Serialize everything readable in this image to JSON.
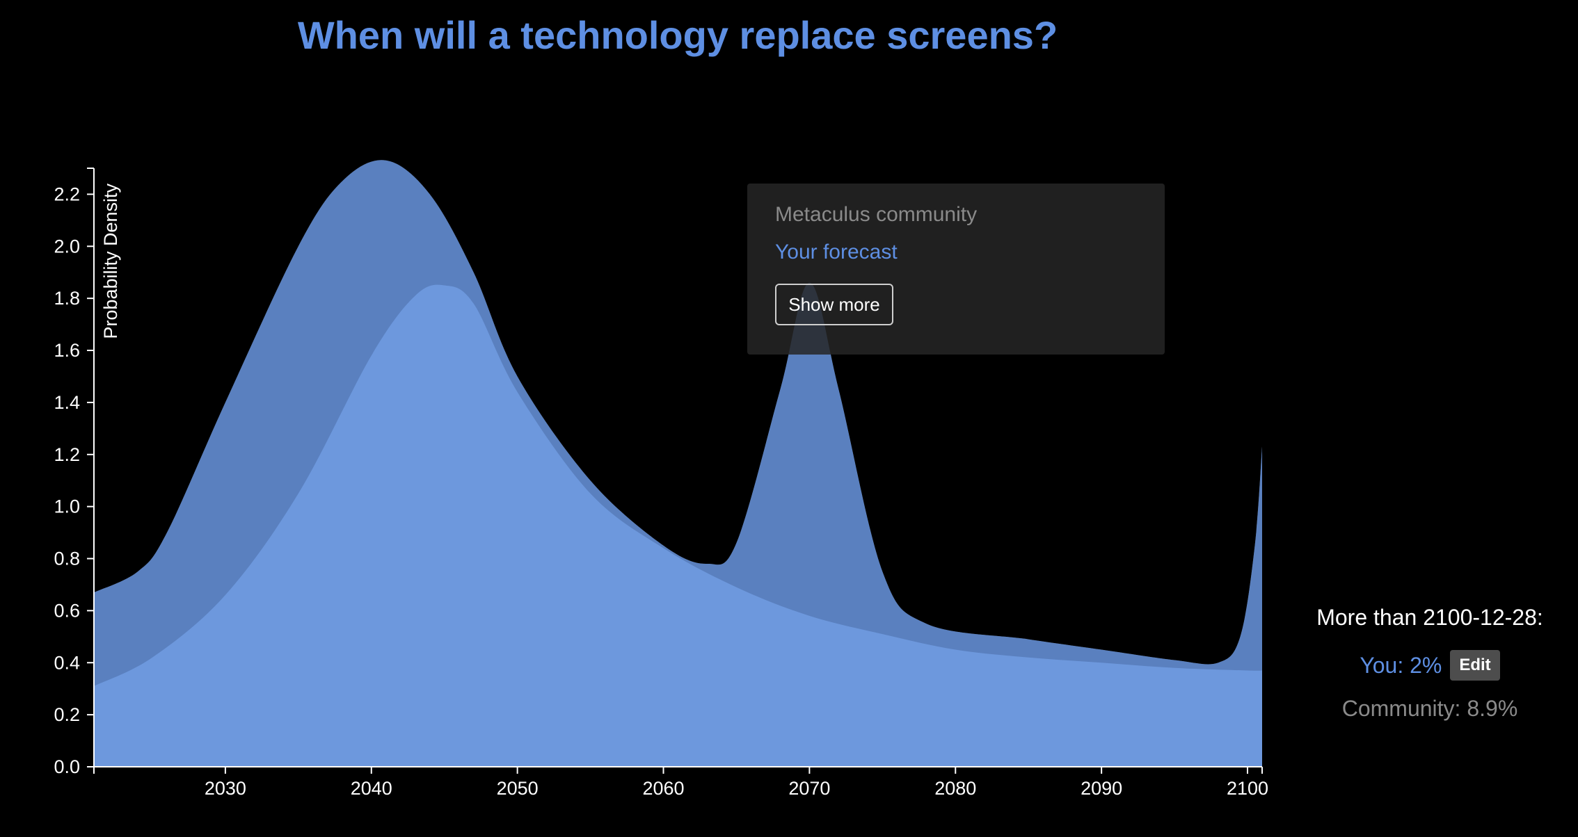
{
  "page": {
    "title": "When will a technology replace screens?"
  },
  "legend": {
    "community_label": "Metaculus community",
    "your_label": "Your forecast",
    "show_more_label": "Show more"
  },
  "side_panel": {
    "heading": "More than 2100-12-28:",
    "you_label": "You: 2%",
    "edit_label": "Edit",
    "community_label": "Community: 8.9%"
  },
  "colors": {
    "background": "#000000",
    "accent": "#5e8fe3",
    "user_fill": "#6f9ae0",
    "community_fill": "#5a5a5a",
    "overlap_fill": "#5a80bf",
    "muted_text": "#8a8a8a"
  },
  "chart_data": {
    "type": "area",
    "title": "When will a technology replace screens?",
    "xlabel": "",
    "ylabel": "Probability Density",
    "xlim": [
      2021,
      2101
    ],
    "ylim": [
      0,
      2.3
    ],
    "x_ticks": [
      2030,
      2040,
      2050,
      2060,
      2070,
      2080,
      2090,
      2100
    ],
    "y_ticks": [
      0.0,
      0.2,
      0.4,
      0.6,
      0.8,
      1.0,
      1.2,
      1.4,
      1.6,
      1.8,
      2.0,
      2.2
    ],
    "y_tick_labels": [
      "0.0",
      "0.2",
      "0.4",
      "0.6",
      "0.8",
      "1.0",
      "1.2",
      "1.4",
      "1.6",
      "1.8",
      "2.0",
      "2.2"
    ],
    "series": [
      {
        "name": "Your forecast",
        "x": [
          2021,
          2025,
          2030,
          2035,
          2040,
          2043,
          2045,
          2047,
          2050,
          2055,
          2060,
          2065,
          2070,
          2075,
          2080,
          2085,
          2090,
          2095,
          2100,
          2101
        ],
        "values": [
          0.31,
          0.42,
          0.66,
          1.05,
          1.58,
          1.81,
          1.85,
          1.78,
          1.44,
          1.05,
          0.84,
          0.69,
          0.58,
          0.51,
          0.45,
          0.42,
          0.4,
          0.38,
          0.37,
          0.37
        ]
      },
      {
        "name": "Metaculus community",
        "x": [
          2021,
          2024,
          2026,
          2030,
          2035,
          2038,
          2041,
          2044,
          2047,
          2050,
          2055,
          2060,
          2063,
          2065,
          2068,
          2070,
          2072,
          2075,
          2078,
          2085,
          2090,
          2095,
          2098,
          2099.5,
          2100.5,
          2101
        ],
        "values": [
          0.67,
          0.75,
          0.9,
          1.4,
          2.0,
          2.25,
          2.33,
          2.2,
          1.9,
          1.5,
          1.1,
          0.85,
          0.78,
          0.86,
          1.45,
          1.86,
          1.45,
          0.75,
          0.55,
          0.49,
          0.45,
          0.41,
          0.4,
          0.5,
          0.85,
          1.23
        ]
      }
    ]
  }
}
